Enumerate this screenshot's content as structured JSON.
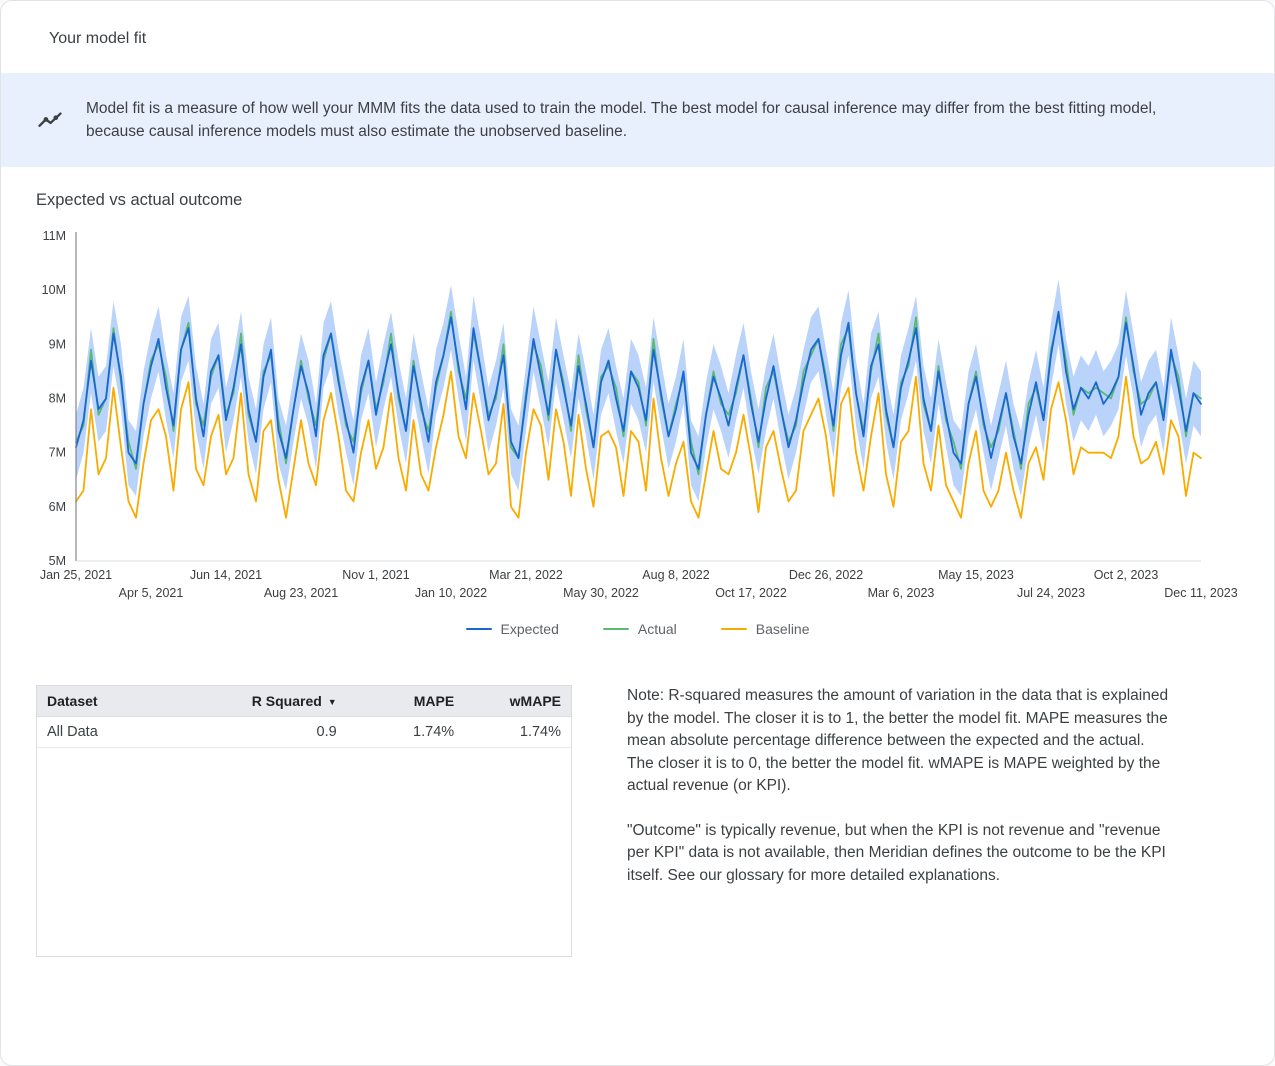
{
  "header": {
    "title": "Your model fit"
  },
  "banner": {
    "icon": "insights-icon",
    "text": "Model fit is a measure of how well your MMM fits the data used to train the model. The best model for causal inference may differ from the best fitting model, because causal inference models must also estimate the unobserved baseline."
  },
  "chart": {
    "title": "Expected vs actual outcome"
  },
  "chart_data": {
    "type": "line",
    "title": "Expected vs actual outcome",
    "xlabel": "",
    "ylabel": "",
    "unit": "M",
    "ylim": [
      5,
      11
    ],
    "y_tick_labels": [
      "5M",
      "6M",
      "7M",
      "8M",
      "9M",
      "10M",
      "11M"
    ],
    "x_tick_every": 10,
    "x_tick_labels": [
      "Jan 25, 2021",
      "Apr 5, 2021",
      "Jun 14, 2021",
      "Aug 23, 2021",
      "Nov 1, 2021",
      "Jan 10, 2022",
      "Mar 21, 2022",
      "May 30, 2022",
      "Aug 8, 2022",
      "Oct 17, 2022",
      "Dec 26, 2022",
      "Mar 6, 2023",
      "May 15, 2023",
      "Jul 24, 2023",
      "Oct 2, 2023",
      "Dec 11, 2023"
    ],
    "legend_position": "bottom",
    "grid": false,
    "band_series": "Expected",
    "band_halfwidth": 0.6,
    "band_color": "#aecbfa",
    "series": [
      {
        "name": "Expected",
        "color": "#1967d2",
        "values": [
          7.1,
          7.6,
          8.7,
          7.8,
          8.0,
          9.2,
          8.4,
          7.0,
          6.8,
          7.9,
          8.6,
          9.1,
          8.2,
          7.5,
          8.9,
          9.3,
          8.0,
          7.3,
          8.5,
          8.8,
          7.6,
          8.2,
          9.0,
          7.8,
          7.2,
          8.4,
          8.9,
          7.4,
          6.9,
          7.8,
          8.6,
          8.1,
          7.3,
          8.8,
          9.2,
          8.3,
          7.6,
          7.0,
          8.2,
          8.7,
          7.7,
          8.4,
          9.0,
          8.1,
          7.4,
          8.6,
          7.9,
          7.2,
          8.3,
          8.8,
          9.5,
          8.6,
          7.8,
          9.3,
          8.5,
          7.6,
          8.1,
          8.8,
          7.2,
          6.9,
          8.0,
          9.1,
          8.4,
          7.7,
          8.9,
          8.2,
          7.5,
          8.6,
          7.9,
          7.1,
          8.3,
          8.7,
          8.0,
          7.4,
          8.5,
          8.2,
          7.6,
          8.9,
          8.1,
          7.3,
          7.8,
          8.5,
          7.0,
          6.7,
          7.7,
          8.4,
          8.0,
          7.5,
          8.2,
          8.8,
          7.9,
          7.2,
          8.0,
          8.6,
          7.8,
          7.1,
          7.6,
          8.3,
          8.9,
          9.1,
          8.3,
          7.5,
          8.8,
          9.4,
          8.1,
          7.3,
          8.6,
          9.0,
          7.8,
          7.1,
          8.2,
          8.7,
          9.3,
          8.0,
          7.4,
          8.5,
          7.7,
          7.0,
          6.8,
          7.9,
          8.4,
          7.6,
          6.9,
          7.5,
          8.1,
          7.3,
          6.8,
          7.7,
          8.3,
          7.6,
          8.8,
          9.6,
          8.5,
          7.8,
          8.2,
          8.0,
          8.3,
          7.9,
          8.1,
          8.4,
          9.4,
          8.6,
          7.7,
          8.1,
          8.3,
          7.6,
          8.9,
          8.2,
          7.4,
          8.1,
          7.9
        ]
      },
      {
        "name": "Actual",
        "color": "#5bb974",
        "values": [
          7.2,
          7.5,
          8.9,
          7.7,
          8.0,
          9.3,
          8.3,
          7.2,
          6.7,
          7.9,
          8.7,
          9.0,
          8.4,
          7.4,
          8.9,
          9.4,
          7.9,
          7.5,
          8.4,
          8.8,
          7.7,
          8.1,
          9.2,
          7.7,
          7.2,
          8.5,
          8.8,
          7.6,
          6.8,
          7.8,
          8.7,
          8.0,
          7.5,
          8.7,
          9.2,
          8.4,
          7.5,
          7.2,
          8.1,
          8.7,
          7.8,
          8.3,
          9.2,
          8.0,
          7.4,
          8.7,
          7.8,
          7.4,
          8.2,
          8.8,
          9.6,
          8.5,
          8.0,
          9.2,
          8.5,
          7.7,
          8.0,
          9.0,
          7.1,
          6.9,
          8.1,
          9.0,
          8.6,
          7.6,
          8.9,
          8.3,
          7.4,
          8.8,
          7.8,
          7.1,
          8.4,
          8.6,
          8.2,
          7.3,
          8.5,
          8.3,
          7.5,
          9.1,
          8.0,
          7.3,
          7.9,
          8.4,
          7.2,
          6.6,
          7.7,
          8.5,
          7.9,
          7.7,
          8.1,
          8.8,
          8.0,
          7.1,
          8.2,
          8.5,
          7.8,
          7.2,
          7.5,
          8.5,
          8.8,
          9.1,
          8.4,
          7.4,
          9.0,
          9.3,
          8.1,
          7.4,
          8.5,
          9.2,
          7.7,
          7.1,
          8.3,
          8.6,
          9.5,
          7.9,
          7.4,
          8.6,
          7.6,
          7.2,
          6.7,
          7.9,
          8.5,
          7.5,
          7.1,
          7.4,
          8.1,
          7.4,
          6.7,
          7.9,
          8.2,
          7.6,
          8.9,
          9.5,
          8.7,
          7.7,
          8.2,
          8.1,
          8.2,
          8.1,
          8.0,
          8.4,
          9.5,
          8.5,
          7.9,
          8.0,
          8.3,
          7.7,
          8.8,
          8.4,
          7.3,
          8.1,
          8.0
        ]
      },
      {
        "name": "Baseline",
        "color": "#f9ab00",
        "values": [
          6.1,
          6.3,
          7.8,
          6.6,
          6.9,
          8.2,
          7.1,
          6.1,
          5.8,
          6.8,
          7.6,
          7.8,
          7.3,
          6.3,
          7.8,
          8.3,
          6.7,
          6.4,
          7.3,
          7.7,
          6.6,
          6.9,
          8.1,
          6.6,
          6.1,
          7.4,
          7.6,
          6.5,
          5.8,
          6.7,
          7.6,
          6.8,
          6.4,
          7.6,
          8.1,
          7.3,
          6.3,
          6.1,
          7.0,
          7.6,
          6.7,
          7.1,
          8.1,
          6.9,
          6.3,
          7.6,
          6.6,
          6.3,
          7.1,
          7.7,
          8.5,
          7.3,
          6.9,
          8.1,
          7.4,
          6.6,
          6.8,
          7.9,
          6.0,
          5.8,
          7.0,
          7.8,
          7.5,
          6.5,
          7.8,
          7.2,
          6.2,
          7.7,
          6.7,
          6.0,
          7.3,
          7.4,
          7.1,
          6.2,
          7.4,
          7.2,
          6.3,
          8.0,
          6.9,
          6.2,
          6.8,
          7.2,
          6.1,
          5.8,
          6.6,
          7.4,
          6.7,
          6.6,
          7.0,
          7.7,
          6.9,
          5.9,
          7.1,
          7.4,
          6.7,
          6.1,
          6.3,
          7.4,
          7.7,
          8.0,
          7.3,
          6.2,
          7.9,
          8.2,
          7.0,
          6.3,
          7.3,
          8.1,
          6.6,
          6.0,
          7.2,
          7.4,
          8.4,
          6.8,
          6.3,
          7.5,
          6.4,
          6.1,
          5.8,
          6.8,
          7.4,
          6.3,
          6.0,
          6.3,
          7.0,
          6.3,
          5.8,
          6.8,
          7.1,
          6.5,
          7.8,
          8.3,
          7.6,
          6.6,
          7.1,
          7.0,
          7.0,
          7.0,
          6.9,
          7.3,
          8.4,
          7.3,
          6.8,
          6.9,
          7.2,
          6.6,
          7.6,
          7.3,
          6.2,
          7.0,
          6.9
        ]
      }
    ]
  },
  "table": {
    "headers": [
      "Dataset",
      "R Squared",
      "MAPE",
      "wMAPE"
    ],
    "sort_indicator": "▼",
    "rows": [
      [
        "All Data",
        "0.9",
        "1.74%",
        "1.74%"
      ]
    ]
  },
  "notes": {
    "p1": "Note: R-squared measures the amount of variation in the data that is explained by the model. The closer it is to 1, the better the model fit. MAPE measures the mean absolute percentage difference between the expected and the actual. The closer it is to 0, the better the model fit. wMAPE is MAPE weighted by the actual revenue (or KPI).",
    "p2": "\"Outcome\" is typically revenue, but when the KPI is not revenue and \"revenue per KPI\" data is not available, then Meridian defines the outcome to be the KPI itself. See our glossary for more detailed explanations."
  }
}
